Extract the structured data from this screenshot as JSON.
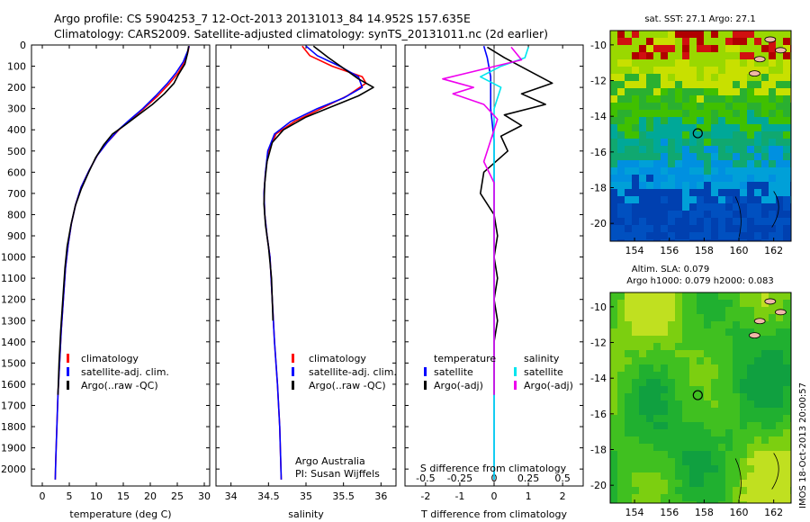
{
  "header": {
    "line1": "Argo profile: CS 5904253_7 12-Oct-2013 20131013_84 14.952S 157.635E",
    "line2": "Climatology: CARS2009. Satellite-adjusted climatology: synTS_20131011.nc (2d earlier)"
  },
  "colors": {
    "climatology": "#ff0000",
    "satellite": "#0000ff",
    "argo": "#000000",
    "sat_sal": "#00e5ee",
    "argo_sal": "#ee00ee"
  },
  "chart_data": [
    {
      "type": "line",
      "name": "temperature-profile",
      "xlabel": "temperature (deg C)",
      "ylabel": "",
      "xlim": [
        -2,
        31
      ],
      "ylim": [
        2080,
        0
      ],
      "xticks": [
        0,
        5,
        10,
        15,
        20,
        25,
        30
      ],
      "yticks": [
        0,
        100,
        200,
        300,
        400,
        500,
        600,
        700,
        800,
        900,
        1000,
        1100,
        1200,
        1300,
        1400,
        1500,
        1600,
        1700,
        1800,
        1900,
        2000
      ],
      "legend": {
        "position": "bottom-center",
        "entries": [
          "climatology",
          "satellite-adj. clim.",
          "Argo(..raw -QC)"
        ]
      },
      "series": [
        {
          "name": "climatology",
          "color": "#ff0000",
          "points": [
            [
              27.2,
              5
            ],
            [
              27.0,
              30
            ],
            [
              26.4,
              80
            ],
            [
              25.2,
              130
            ],
            [
              23.6,
              180
            ],
            [
              21.4,
              240
            ],
            [
              18.8,
              300
            ],
            [
              16.4,
              350
            ],
            [
              14.2,
              400
            ],
            [
              12.0,
              460
            ],
            [
              10.2,
              520
            ],
            [
              8.7,
              590
            ],
            [
              7.2,
              670
            ],
            [
              6.2,
              750
            ],
            [
              5.4,
              840
            ],
            [
              4.8,
              940
            ],
            [
              4.3,
              1050
            ],
            [
              3.9,
              1200
            ],
            [
              3.5,
              1350
            ],
            [
              3.2,
              1500
            ],
            [
              2.9,
              1650
            ],
            [
              2.7,
              1800
            ],
            [
              2.5,
              1950
            ],
            [
              2.4,
              2050
            ]
          ]
        },
        {
          "name": "satellite-adj. clim.",
          "color": "#0000ff",
          "points": [
            [
              27.2,
              5
            ],
            [
              26.9,
              30
            ],
            [
              26.1,
              80
            ],
            [
              24.8,
              130
            ],
            [
              23.2,
              180
            ],
            [
              21.0,
              240
            ],
            [
              18.6,
              300
            ],
            [
              16.3,
              350
            ],
            [
              14.1,
              400
            ],
            [
              12.0,
              460
            ],
            [
              10.2,
              520
            ],
            [
              8.7,
              590
            ],
            [
              7.2,
              670
            ],
            [
              6.2,
              750
            ],
            [
              5.4,
              840
            ],
            [
              4.8,
              940
            ],
            [
              4.3,
              1050
            ],
            [
              3.9,
              1200
            ],
            [
              3.5,
              1350
            ],
            [
              3.2,
              1500
            ],
            [
              2.9,
              1650
            ],
            [
              2.7,
              1800
            ],
            [
              2.5,
              1950
            ],
            [
              2.4,
              2050
            ]
          ]
        },
        {
          "name": "Argo(..raw -QC)",
          "color": "#000000",
          "points": [
            [
              27.1,
              5
            ],
            [
              26.9,
              40
            ],
            [
              26.4,
              90
            ],
            [
              25.2,
              140
            ],
            [
              24.4,
              180
            ],
            [
              22.6,
              230
            ],
            [
              20.4,
              280
            ],
            [
              17.8,
              330
            ],
            [
              15.2,
              380
            ],
            [
              13.0,
              420
            ],
            [
              11.4,
              470
            ],
            [
              9.9,
              530
            ],
            [
              8.6,
              600
            ],
            [
              7.2,
              680
            ],
            [
              6.1,
              760
            ],
            [
              5.3,
              850
            ],
            [
              4.6,
              950
            ],
            [
              4.2,
              1050
            ],
            [
              3.8,
              1200
            ],
            [
              3.4,
              1350
            ],
            [
              3.1,
              1500
            ],
            [
              2.9,
              1650
            ]
          ]
        }
      ]
    },
    {
      "type": "line",
      "name": "salinity-profile",
      "xlabel": "salinity",
      "xlim": [
        33.8,
        36.2
      ],
      "ylim": [
        2080,
        0
      ],
      "xticks": [
        34,
        34.5,
        35,
        35.5,
        36
      ],
      "legend": {
        "position": "bottom-center",
        "entries": [
          "climatology",
          "satellite-adj. clim.",
          "Argo(..raw -QC)"
        ]
      },
      "annotation": [
        "Argo Australia",
        "PI: Susan Wijffels"
      ],
      "series": [
        {
          "name": "climatology",
          "color": "#ff0000",
          "points": [
            [
              34.95,
              5
            ],
            [
              35.05,
              50
            ],
            [
              35.35,
              100
            ],
            [
              35.75,
              150
            ],
            [
              35.8,
              180
            ],
            [
              35.55,
              240
            ],
            [
              35.2,
              300
            ],
            [
              34.85,
              360
            ],
            [
              34.6,
              420
            ],
            [
              34.5,
              500
            ],
            [
              34.46,
              600
            ],
            [
              34.44,
              700
            ],
            [
              34.45,
              800
            ],
            [
              34.48,
              900
            ],
            [
              34.52,
              1000
            ],
            [
              34.55,
              1200
            ],
            [
              34.58,
              1400
            ],
            [
              34.62,
              1600
            ],
            [
              34.65,
              1800
            ],
            [
              34.67,
              2050
            ]
          ]
        },
        {
          "name": "satellite-adj. clim.",
          "color": "#0000ff",
          "points": [
            [
              35.0,
              5
            ],
            [
              35.15,
              50
            ],
            [
              35.45,
              100
            ],
            [
              35.7,
              150
            ],
            [
              35.75,
              200
            ],
            [
              35.5,
              250
            ],
            [
              35.15,
              300
            ],
            [
              34.8,
              360
            ],
            [
              34.58,
              420
            ],
            [
              34.49,
              500
            ],
            [
              34.46,
              600
            ],
            [
              34.44,
              700
            ],
            [
              34.45,
              800
            ],
            [
              34.48,
              900
            ],
            [
              34.52,
              1000
            ],
            [
              34.55,
              1200
            ],
            [
              34.58,
              1400
            ],
            [
              34.62,
              1600
            ],
            [
              34.65,
              1800
            ],
            [
              34.67,
              2050
            ]
          ]
        },
        {
          "name": "Argo(..raw -QC)",
          "color": "#000000",
          "points": [
            [
              35.1,
              5
            ],
            [
              35.3,
              60
            ],
            [
              35.5,
              110
            ],
            [
              35.7,
              160
            ],
            [
              35.9,
              200
            ],
            [
              35.7,
              240
            ],
            [
              35.35,
              290
            ],
            [
              35.0,
              340
            ],
            [
              34.7,
              400
            ],
            [
              34.55,
              460
            ],
            [
              34.48,
              550
            ],
            [
              34.45,
              650
            ],
            [
              34.44,
              750
            ],
            [
              34.46,
              850
            ],
            [
              34.5,
              950
            ],
            [
              34.54,
              1100
            ],
            [
              34.56,
              1300
            ]
          ]
        }
      ]
    },
    {
      "type": "line",
      "name": "difference-profile",
      "xlabel": "T difference from climatology",
      "xlabel_top": "S difference from climatology",
      "xlim": [
        -2.6,
        2.6
      ],
      "ylim": [
        2080,
        0
      ],
      "xticks_bottom": [
        -2,
        -1,
        0,
        1,
        2
      ],
      "xticks_top": [
        "-0.5",
        "-0.25",
        "0",
        "0.25",
        "0.5"
      ],
      "xticks_top_pos": [
        -2,
        -1,
        0,
        1,
        2
      ],
      "legend": {
        "position": "bottom-center",
        "headers": [
          "temperature",
          "salinity"
        ],
        "entries": [
          "satellite",
          "Argo(-adj)",
          "satellite",
          "Argo(-adj)"
        ]
      },
      "series": [
        {
          "name": "temperature satellite",
          "color": "#0000ff",
          "points": [
            [
              -0.3,
              5
            ],
            [
              -0.2,
              60
            ],
            [
              -0.1,
              150
            ],
            [
              -0.1,
              300
            ],
            [
              0,
              450
            ],
            [
              0,
              600
            ],
            [
              0,
              900
            ],
            [
              0,
              1200
            ],
            [
              0,
              1500
            ],
            [
              0,
              1800
            ],
            [
              0,
              2050
            ]
          ]
        },
        {
          "name": "temperature Argo(-adj)",
          "color": "#000000",
          "points": [
            [
              -0.2,
              10
            ],
            [
              0.3,
              60
            ],
            [
              1.0,
              120
            ],
            [
              1.7,
              180
            ],
            [
              0.8,
              230
            ],
            [
              1.5,
              280
            ],
            [
              0.3,
              330
            ],
            [
              0.8,
              380
            ],
            [
              0.2,
              430
            ],
            [
              0.4,
              500
            ],
            [
              -0.3,
              600
            ],
            [
              -0.4,
              700
            ],
            [
              0,
              800
            ],
            [
              0.1,
              900
            ],
            [
              0,
              1000
            ],
            [
              0.1,
              1100
            ],
            [
              0,
              1200
            ],
            [
              0.1,
              1300
            ],
            [
              0,
              1400
            ],
            [
              0,
              1500
            ],
            [
              0,
              1650
            ]
          ]
        },
        {
          "name": "salinity satellite",
          "color": "#00e5ee",
          "points": [
            [
              1.0,
              10
            ],
            [
              0.9,
              60
            ],
            [
              0.2,
              100
            ],
            [
              -0.4,
              150
            ],
            [
              0.2,
              200
            ],
            [
              0.1,
              250
            ],
            [
              0,
              300
            ],
            [
              0,
              400
            ],
            [
              0,
              600
            ],
            [
              0,
              900
            ],
            [
              0,
              1200
            ],
            [
              0,
              1500
            ],
            [
              0,
              1800
            ],
            [
              0,
              2050
            ]
          ]
        },
        {
          "name": "salinity Argo(-adj)",
          "color": "#ee00ee",
          "points": [
            [
              0.5,
              10
            ],
            [
              0.8,
              70
            ],
            [
              -1.5,
              160
            ],
            [
              -0.6,
              200
            ],
            [
              -1.2,
              230
            ],
            [
              -0.3,
              280
            ],
            [
              0.1,
              350
            ],
            [
              -0.1,
              450
            ],
            [
              -0.3,
              550
            ],
            [
              0,
              650
            ],
            [
              0,
              800
            ],
            [
              0,
              1000
            ],
            [
              0,
              1200
            ],
            [
              0,
              1400
            ],
            [
              0,
              1650
            ]
          ]
        }
      ]
    },
    {
      "type": "heatmap",
      "name": "sst-map",
      "title": "sat. SST: 27.1 Argo: 27.1",
      "xlim": [
        152.6,
        163
      ],
      "ylim": [
        -21,
        -9.2
      ],
      "xticks": [
        154,
        156,
        158,
        160,
        162
      ],
      "yticks": [
        -10,
        -12,
        -14,
        -16,
        -18,
        -20
      ],
      "marker": {
        "lon": 157.635,
        "lat": -14.952
      }
    },
    {
      "type": "heatmap",
      "name": "sla-map",
      "title": [
        "Altim. SLA: 0.079",
        "Argo h1000: 0.079 h2000: 0.083"
      ],
      "xlim": [
        152.6,
        163
      ],
      "ylim": [
        -21,
        -9.2
      ],
      "xticks": [
        154,
        156,
        158,
        160,
        162
      ],
      "yticks": [
        -10,
        -12,
        -14,
        -16,
        -18,
        -20
      ],
      "marker": {
        "lon": 157.635,
        "lat": -14.952
      }
    }
  ],
  "footer": {
    "stamp": "IMOS 18-Oct-2013 20:00:57"
  }
}
